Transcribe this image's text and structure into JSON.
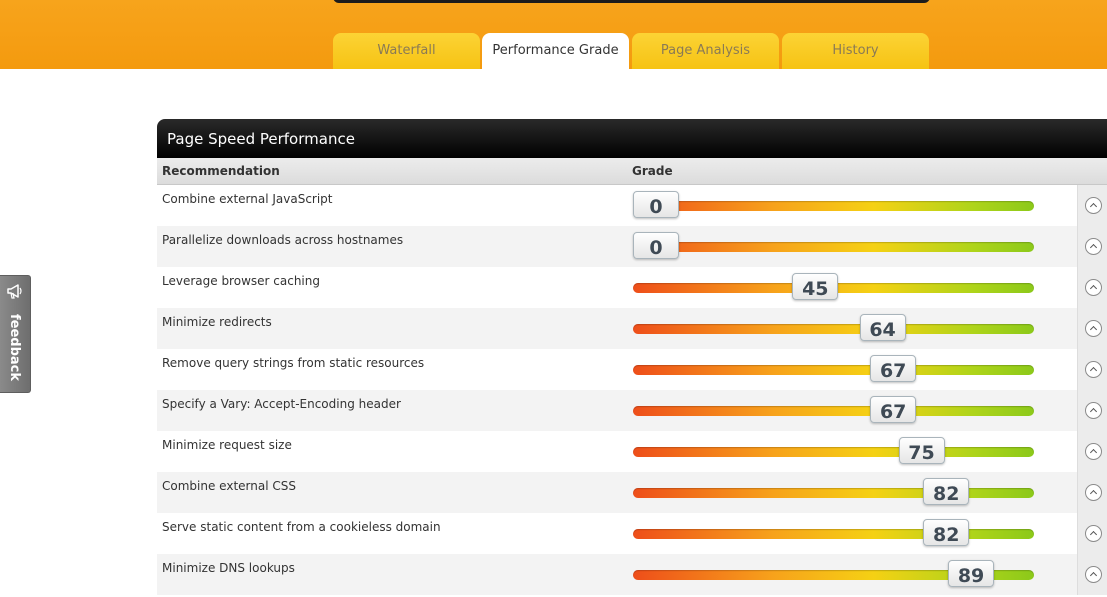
{
  "tabs": [
    {
      "label": "Waterfall",
      "active": false
    },
    {
      "label": "Performance Grade",
      "active": true
    },
    {
      "label": "Page Analysis",
      "active": false
    },
    {
      "label": "History",
      "active": false
    }
  ],
  "panel": {
    "title": "Page Speed Performance",
    "columns": {
      "recommendation": "Recommendation",
      "grade": "Grade"
    },
    "rows": [
      {
        "label": "Combine external JavaScript",
        "grade": 0
      },
      {
        "label": "Parallelize downloads across hostnames",
        "grade": 0
      },
      {
        "label": "Leverage browser caching",
        "grade": 45
      },
      {
        "label": "Minimize redirects",
        "grade": 64
      },
      {
        "label": "Remove query strings from static resources",
        "grade": 67
      },
      {
        "label": "Specify a Vary: Accept-Encoding header",
        "grade": 67
      },
      {
        "label": "Minimize request size",
        "grade": 75
      },
      {
        "label": "Combine external CSS",
        "grade": 82
      },
      {
        "label": "Serve static content from a cookieless domain",
        "grade": 82
      },
      {
        "label": "Minimize DNS lookups",
        "grade": 89
      }
    ]
  },
  "feedback": {
    "label": "feedback",
    "icon": "megaphone-icon"
  },
  "row_icon": "chevron-up-icon",
  "colors": {
    "accent": "#f49a0e",
    "tab_yellow": "#fcd335",
    "header_dark": "#000000"
  }
}
